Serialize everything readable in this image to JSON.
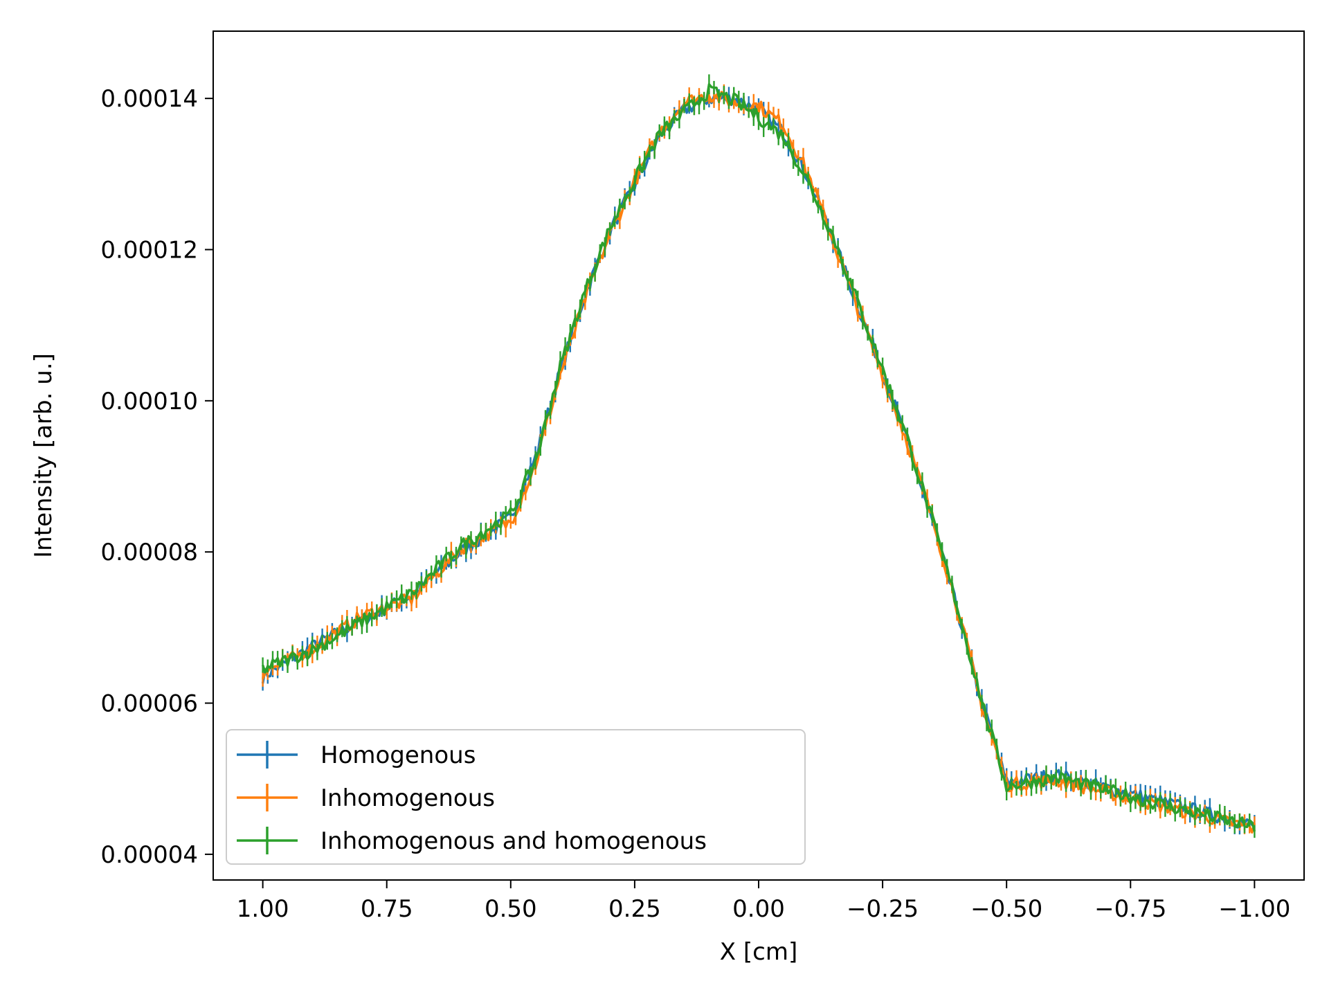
{
  "chart_data": {
    "type": "line",
    "xlabel": "X [cm]",
    "ylabel": "Intensity [arb. u.]",
    "xlim": [
      1.1,
      -1.1
    ],
    "ylim": [
      3.66e-05,
      0.0001489
    ],
    "x_inverted": true,
    "grid": false,
    "legend_position": "lower-left",
    "x_ticks": [
      1.0,
      0.75,
      0.5,
      0.25,
      0.0,
      -0.25,
      -0.5,
      -0.75,
      -1.0
    ],
    "x_tick_labels": [
      "1.00",
      "0.75",
      "0.50",
      "0.25",
      "0.00",
      "−0.25",
      "−0.50",
      "−0.75",
      "−1.00"
    ],
    "y_ticks": [
      4e-05,
      6e-05,
      8e-05,
      0.0001,
      0.00012,
      0.00014
    ],
    "y_tick_labels": [
      "0.00004",
      "0.00006",
      "0.00008",
      "0.00010",
      "0.00012",
      "0.00014"
    ],
    "error_bar_halfwidth": 1.2e-06,
    "x": [
      1.0,
      0.9,
      0.8,
      0.7,
      0.6,
      0.5,
      0.45,
      0.4,
      0.35,
      0.3,
      0.25,
      0.2,
      0.15,
      0.1,
      0.05,
      0.0,
      -0.05,
      -0.1,
      -0.15,
      -0.2,
      -0.25,
      -0.3,
      -0.35,
      -0.4,
      -0.45,
      -0.5,
      -0.6,
      -0.7,
      -0.8,
      -0.9,
      -1.0
    ],
    "series": [
      {
        "name": "Homogenous",
        "color": "#1f77b4",
        "values": [
          6.35e-05,
          6.75e-05,
          7.1e-05,
          7.42e-05,
          8e-05,
          8.45e-05,
          9.25e-05,
          0.000104,
          0.000114,
          0.0001225,
          0.0001285,
          0.000135,
          0.0001385,
          0.00014,
          0.00014,
          0.0001385,
          0.0001355,
          0.0001295,
          0.0001215,
          0.0001125,
          0.000104,
          9.45e-05,
          8.4e-05,
          7.25e-05,
          6e-05,
          4.95e-05,
          5.05e-05,
          4.88e-05,
          4.72e-05,
          4.55e-05,
          4.38e-05
        ]
      },
      {
        "name": "Inhomogenous",
        "color": "#ff7f0e",
        "values": [
          6.4e-05,
          6.72e-05,
          7.15e-05,
          7.38e-05,
          8.05e-05,
          8.4e-05,
          9.15e-05,
          0.0001035,
          0.0001135,
          0.000122,
          0.000129,
          0.0001355,
          0.0001395,
          0.0001405,
          0.0001395,
          0.000139,
          0.0001365,
          0.00013,
          0.0001212,
          0.0001122,
          0.0001035,
          9.45e-05,
          8.45e-05,
          7.28e-05,
          5.98e-05,
          4.92e-05,
          4.98e-05,
          4.82e-05,
          4.66e-05,
          4.5e-05,
          4.34e-05
        ]
      },
      {
        "name": "Inhomogenous and homogenous",
        "color": "#2ca02c",
        "values": [
          6.45e-05,
          6.7e-05,
          7.08e-05,
          7.45e-05,
          8.08e-05,
          8.5e-05,
          9.2e-05,
          0.0001045,
          0.0001145,
          0.0001228,
          0.0001292,
          0.0001352,
          0.0001382,
          0.000141,
          0.0001398,
          0.0001375,
          0.000135,
          0.000129,
          0.0001218,
          0.000113,
          0.0001042,
          9.5e-05,
          8.42e-05,
          7.3e-05,
          6.02e-05,
          4.9e-05,
          5.02e-05,
          4.85e-05,
          4.68e-05,
          4.52e-05,
          4.36e-05
        ]
      }
    ]
  }
}
